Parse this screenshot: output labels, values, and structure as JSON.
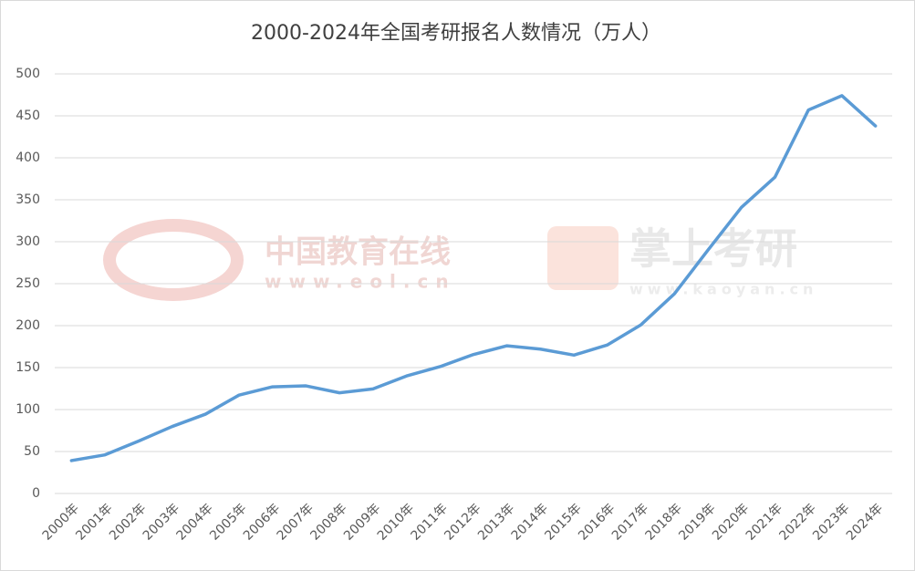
{
  "chart_data": {
    "type": "line",
    "title": "2000-2024年全国考研报名人数情况（万人）",
    "categories": [
      "2000年",
      "2001年",
      "2002年",
      "2003年",
      "2004年",
      "2005年",
      "2006年",
      "2007年",
      "2008年",
      "2009年",
      "2010年",
      "2011年",
      "2012年",
      "2013年",
      "2014年",
      "2015年",
      "2016年",
      "2017年",
      "2018年",
      "2019年",
      "2020年",
      "2021年",
      "2022年",
      "2023年",
      "2024年"
    ],
    "series": [
      {
        "name": "考研报名人数",
        "color": "#5b9bd5",
        "values": [
          39.2,
          46,
          62.4,
          79.7,
          94.5,
          117.2,
          127.1,
          128.2,
          120,
          124.6,
          140,
          151.1,
          165.6,
          176,
          172,
          164.9,
          177,
          201,
          238,
          290,
          341,
          377,
          457,
          474,
          438
        ]
      }
    ],
    "ylim": [
      0,
      500
    ],
    "yticks": [
      0,
      50,
      100,
      150,
      200,
      250,
      300,
      350,
      400,
      450,
      500
    ],
    "grid": true,
    "watermarks": [
      "中国教育在线",
      "www.eol.cn",
      "掌上考研",
      "www.kaoyan.cn"
    ]
  }
}
